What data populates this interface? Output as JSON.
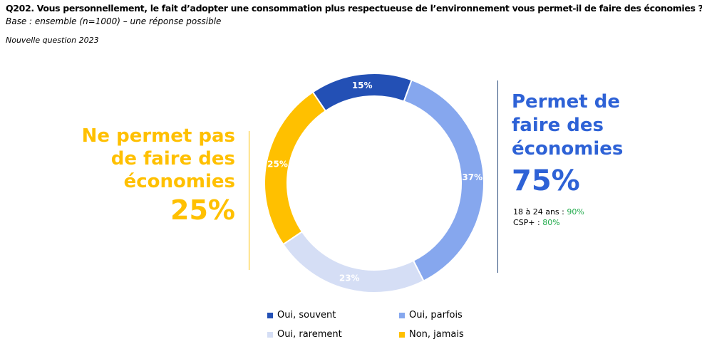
{
  "header": {
    "question": "Q202. Vous personnellement, le fait d’adopter une consommation plus respectueuse de l’environnement vous permet-il de faire des économies ?",
    "base": "Base : ensemble (n=1000) – une réponse possible",
    "note": "Nouvelle question 2023"
  },
  "left_panel": {
    "title": "Ne permet pas de faire des économies",
    "value": "25%"
  },
  "right_panel": {
    "title": "Permet de faire des économies",
    "value": "75%",
    "sub": [
      {
        "label": "18 à 24 ans : ",
        "value": "90%"
      },
      {
        "label": "CSP+ : ",
        "value": "80%"
      }
    ]
  },
  "colors": {
    "oui_souvent": "#2350b5",
    "oui_parfois": "#86a7ee",
    "oui_rarement": "#d5def5",
    "non_jamais": "#ffc000",
    "positive_accent": "#2e62d6",
    "negative_accent": "#ffc000",
    "sub_value": "#1faa4a"
  },
  "chart_data": {
    "type": "pie",
    "donut": true,
    "categories": [
      "Oui, souvent",
      "Oui, parfois",
      "Oui, rarement",
      "Non, jamais"
    ],
    "values": [
      15,
      37,
      23,
      25
    ],
    "labels": [
      "15%",
      "37%",
      "23%",
      "25%"
    ],
    "colors": [
      "#2350b5",
      "#86a7ee",
      "#d5def5",
      "#ffc000"
    ],
    "legend_position": "bottom"
  }
}
